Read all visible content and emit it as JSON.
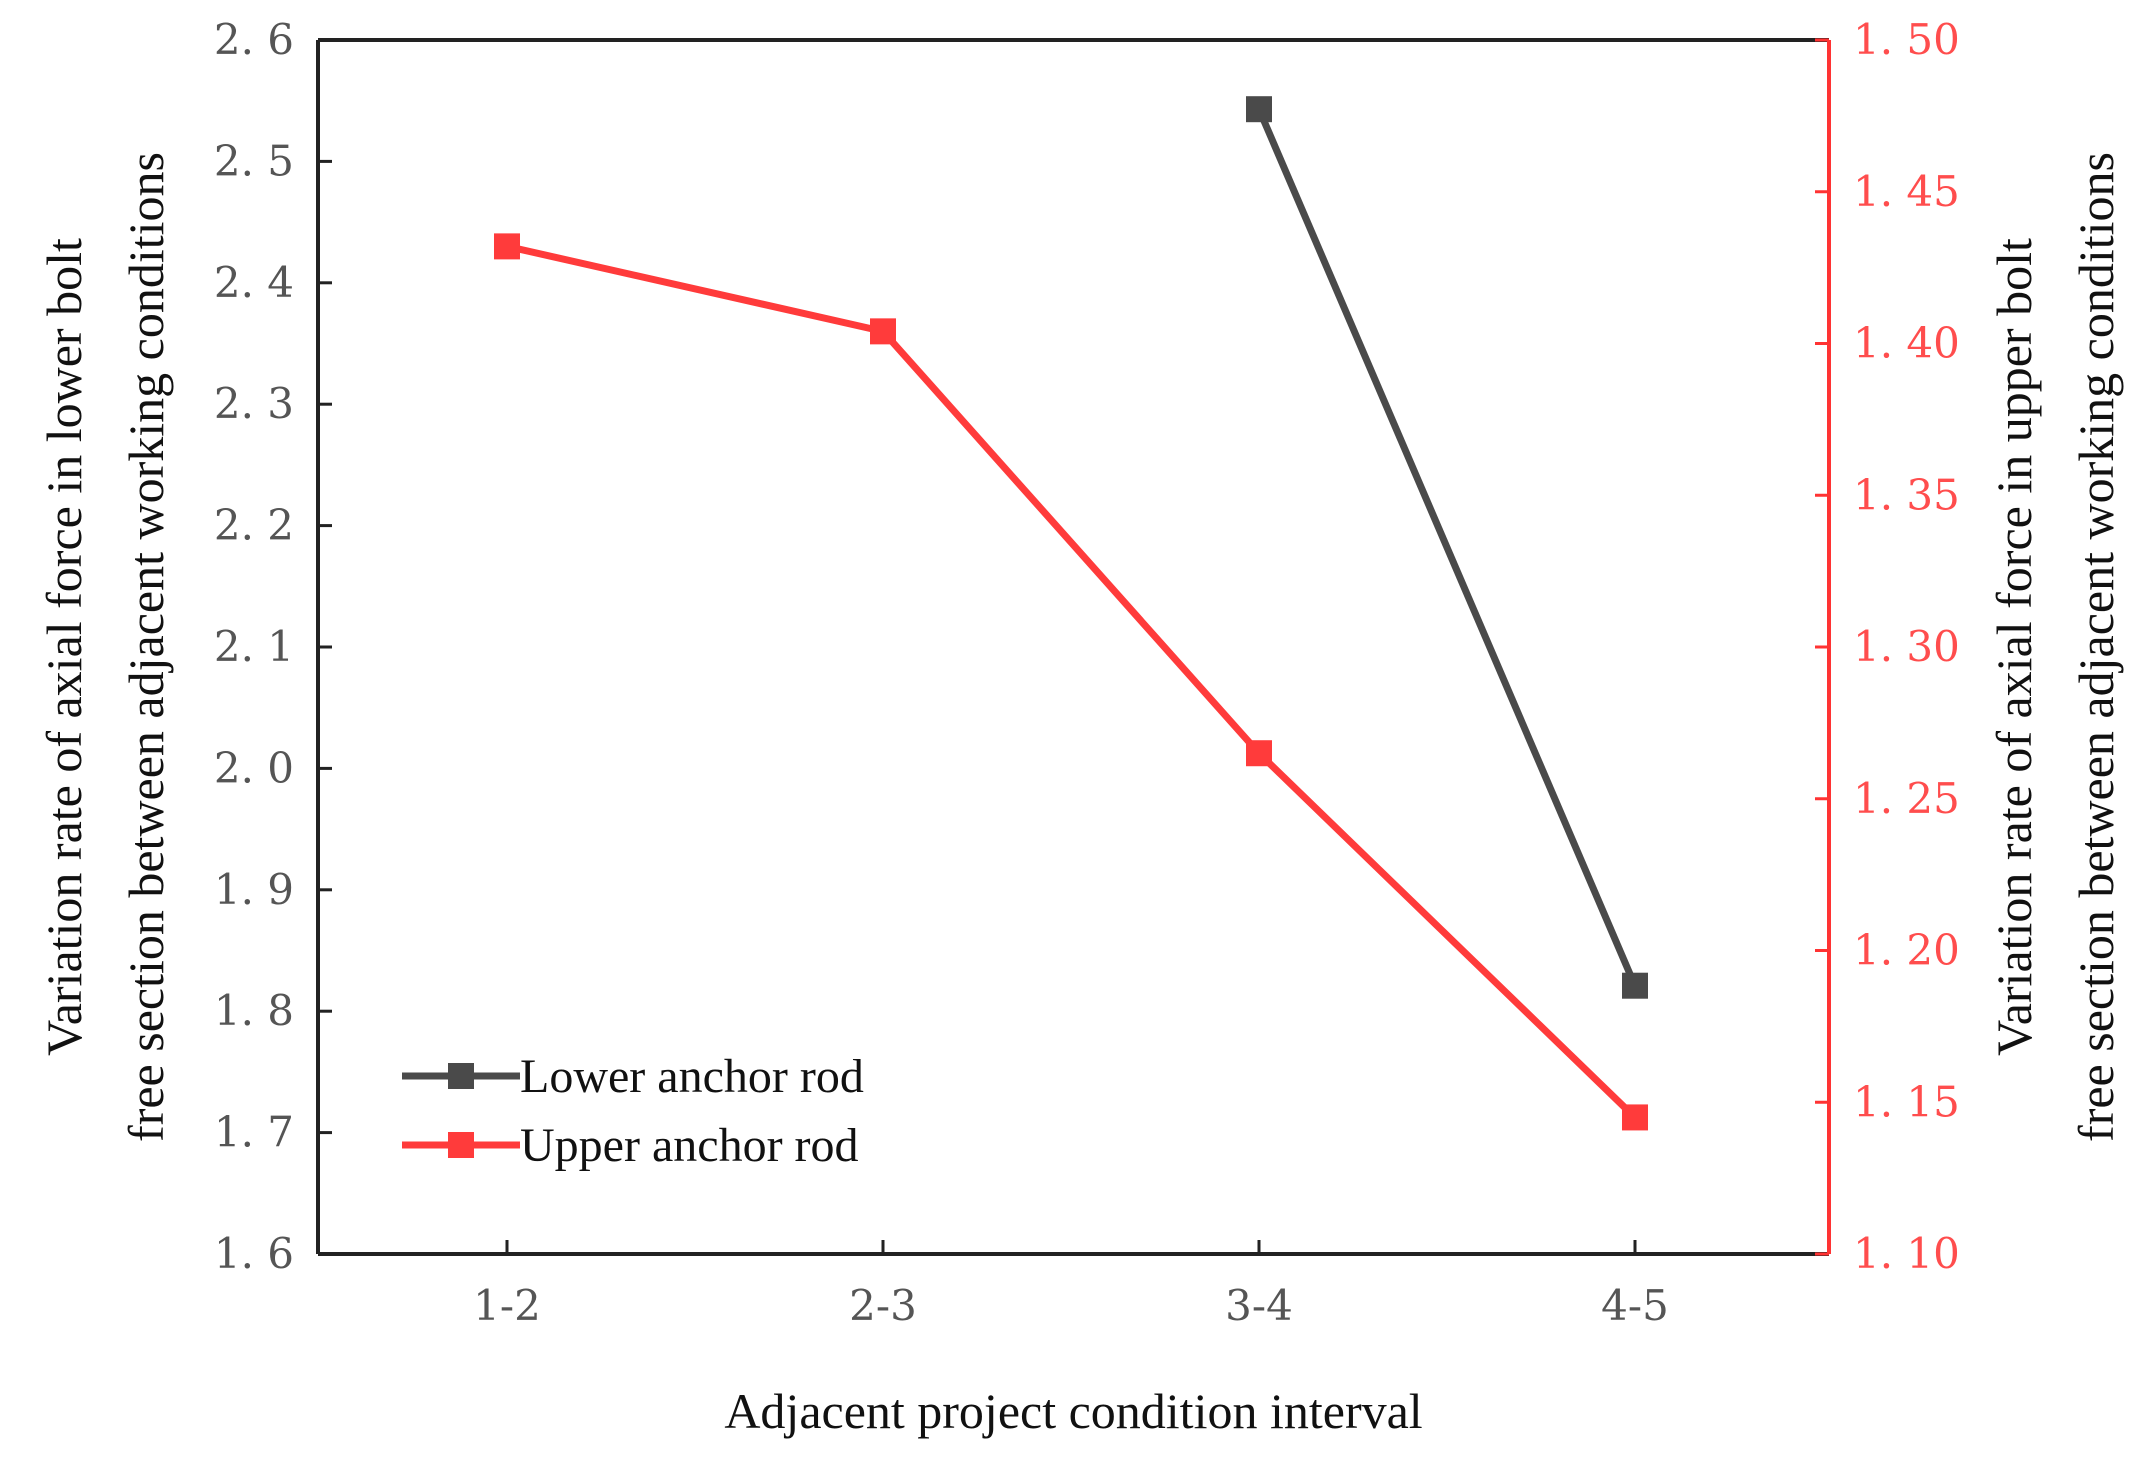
{
  "chart_data": {
    "type": "line",
    "categories": [
      "1-2",
      "2-3",
      "3-4",
      "4-5"
    ],
    "xlabel": "Adjacent project condition interval",
    "ylabel_left": [
      "Variation rate of axial force in lower bolt",
      "free section between adjacent working conditions"
    ],
    "ylabel_right": [
      "Variation rate of axial force in upper bolt",
      "free section between adjacent working conditions"
    ],
    "left_axis": {
      "range": [
        1.6,
        2.6
      ],
      "ticks": [
        1.6,
        1.7,
        1.8,
        1.9,
        2.0,
        2.1,
        2.2,
        2.3,
        2.4,
        2.5,
        2.6
      ],
      "tick_labels": [
        "1. 6",
        "1. 7",
        "1. 8",
        "1. 9",
        "2. 0",
        "2. 1",
        "2. 2",
        "2. 3",
        "2. 4",
        "2. 5",
        "2. 6"
      ],
      "color": "#333333"
    },
    "right_axis": {
      "range": [
        1.1,
        1.5
      ],
      "ticks": [
        1.1,
        1.15,
        1.2,
        1.25,
        1.3,
        1.35,
        1.4,
        1.45,
        1.5
      ],
      "tick_labels": [
        "1. 10",
        "1. 15",
        "1. 20",
        "1. 25",
        "1. 30",
        "1. 35",
        "1. 40",
        "1. 45",
        "1. 50"
      ],
      "color": "#ff3333"
    },
    "series": [
      {
        "name": "Lower anchor rod",
        "axis": "left",
        "color": "#4a4a4a",
        "marker": "square",
        "values": [
          null,
          null,
          2.543,
          1.821
        ]
      },
      {
        "name": "Upper anchor rod",
        "axis": "right",
        "color": "#ff3b3b",
        "marker": "square",
        "values": [
          1.432,
          1.404,
          1.265,
          1.145
        ]
      }
    ],
    "legend_position": "bottom-left",
    "grid": false
  }
}
